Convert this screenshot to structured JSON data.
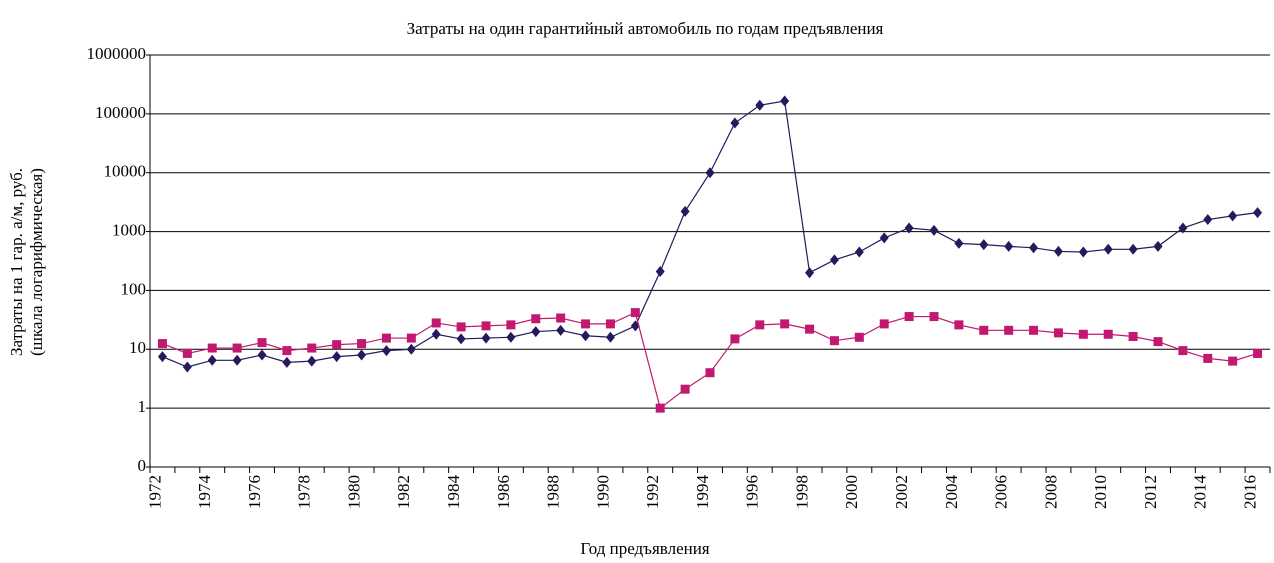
{
  "chart_data": {
    "type": "line",
    "title": "Затраты на один гарантийный автомобиль по годам предъявления",
    "x_label": "Год предъявления",
    "y_label": [
      "Затраты  на 1 гар. а/м, руб.",
      "(шкала логарифмическая)"
    ],
    "log_scale_y": true,
    "grid": true,
    "categories": [
      "1972",
      null,
      "1974",
      null,
      "1976",
      null,
      "1978",
      null,
      "1980",
      null,
      "1982",
      null,
      "1984",
      null,
      "1986",
      null,
      "1988",
      null,
      "1990",
      null,
      "1992",
      null,
      "1994",
      null,
      "1996",
      null,
      "1998",
      null,
      "2000",
      null,
      "2002",
      null,
      "2004",
      null,
      "2006",
      null,
      "2008",
      null,
      "2010",
      null,
      "2012",
      null,
      "2014",
      null,
      "2016"
    ],
    "ylim": [
      0.1,
      1000000
    ],
    "yticks": [
      {
        "value": 0.1,
        "label": "0"
      },
      1,
      10,
      100,
      1000,
      10000,
      100000,
      1000000
    ],
    "series": [
      {
        "color": "#241a5c",
        "marker": "diamond",
        "values": [
          7.5,
          5,
          6.5,
          6.5,
          8,
          6,
          6.3,
          7.5,
          8,
          9.5,
          10,
          18,
          15,
          15.5,
          16,
          20,
          21,
          17,
          16,
          25,
          210,
          2200,
          10000,
          70000,
          140000,
          165000,
          200,
          330,
          450,
          780,
          1150,
          1050,
          630,
          600,
          560,
          530,
          460,
          450,
          500,
          500,
          560,
          1150,
          1600,
          1850,
          2100
        ]
      },
      {
        "color": "#c2186f",
        "marker": "square",
        "values": [
          12.5,
          8.5,
          10.5,
          10.5,
          13,
          9.5,
          10.5,
          12,
          12.5,
          15.5,
          15.5,
          28,
          24,
          25,
          26,
          33,
          34,
          27,
          27,
          42,
          1,
          2.1,
          4,
          15,
          26,
          27,
          22,
          14,
          16,
          27,
          36,
          36,
          26,
          21,
          21,
          21,
          19,
          18,
          18,
          16.5,
          13.5,
          9.5,
          7,
          6.3,
          8.5
        ]
      }
    ]
  }
}
